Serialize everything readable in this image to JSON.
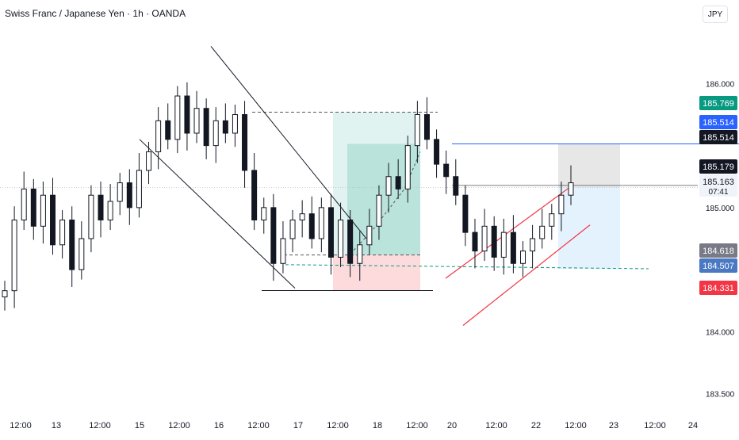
{
  "header": {
    "title": "Swiss Franc / Japanese Yen · 1h · OANDA",
    "currency": "JPY"
  },
  "chart_data": {
    "type": "candlestick",
    "title": "Swiss Franc / Japanese Yen · 1h · OANDA",
    "ylim": [
      183.35,
      186.45
    ],
    "grid": false,
    "x_ticks": [
      "12:00",
      "13",
      "12:00",
      "15",
      "12:00",
      "16",
      "12:00",
      "17",
      "12:00",
      "18",
      "12:00",
      "20",
      "12:00",
      "22",
      "12:00",
      "23",
      "12:00",
      "24"
    ],
    "y_ticks": [
      186.0,
      185.0,
      184.0,
      183.5
    ],
    "y_tick_labels": [
      "186.000",
      "185.000",
      "184.000",
      "183.500"
    ],
    "close_series": [
      184.33,
      184.9,
      185.15,
      184.85,
      185.1,
      184.7,
      184.9,
      184.5,
      184.75,
      185.1,
      184.9,
      185.05,
      185.2,
      185.0,
      185.3,
      185.45,
      185.7,
      185.55,
      185.9,
      185.6,
      185.8,
      185.5,
      185.7,
      185.6,
      185.75,
      185.3,
      184.9,
      185.0,
      184.55,
      184.75,
      184.9,
      184.95,
      184.75,
      185.0,
      184.6,
      184.9,
      184.55,
      184.7,
      184.85,
      185.1,
      185.25,
      185.15,
      185.5,
      185.75,
      185.55,
      185.35,
      185.25,
      185.1,
      184.8,
      184.65,
      184.85,
      184.6,
      184.8,
      184.55,
      184.65,
      184.75,
      184.85,
      184.95,
      185.1,
      185.2
    ],
    "price_labels": [
      {
        "label": "185.769",
        "value": 185.769,
        "color": "#089981"
      },
      {
        "label": "185.514",
        "value": 185.514,
        "color": "#2962ff"
      },
      {
        "label": "185.514",
        "value": 185.514,
        "color": "#131722"
      },
      {
        "label": "185.179",
        "value": 185.179,
        "color": "#131722"
      },
      {
        "label": "185.163",
        "value": 185.163,
        "color": "#f0f3fa",
        "sub": "07:41"
      },
      {
        "label": "184.618",
        "value": 184.618,
        "color": "#787b86"
      },
      {
        "label": "184.507",
        "value": 184.507,
        "color": "#4a78c2"
      },
      {
        "label": "184.331",
        "value": 184.331,
        "color": "#f23645"
      }
    ],
    "colors": {
      "up": "#089981",
      "down": "#f23645",
      "candle": "#131722",
      "target_zone": "#089981",
      "stop_zone": "#f23645",
      "position_top": "#9e9e9e",
      "position_bottom": "#90caf9",
      "channel_red": "#f23645",
      "blue_line": "#2962ff"
    }
  }
}
